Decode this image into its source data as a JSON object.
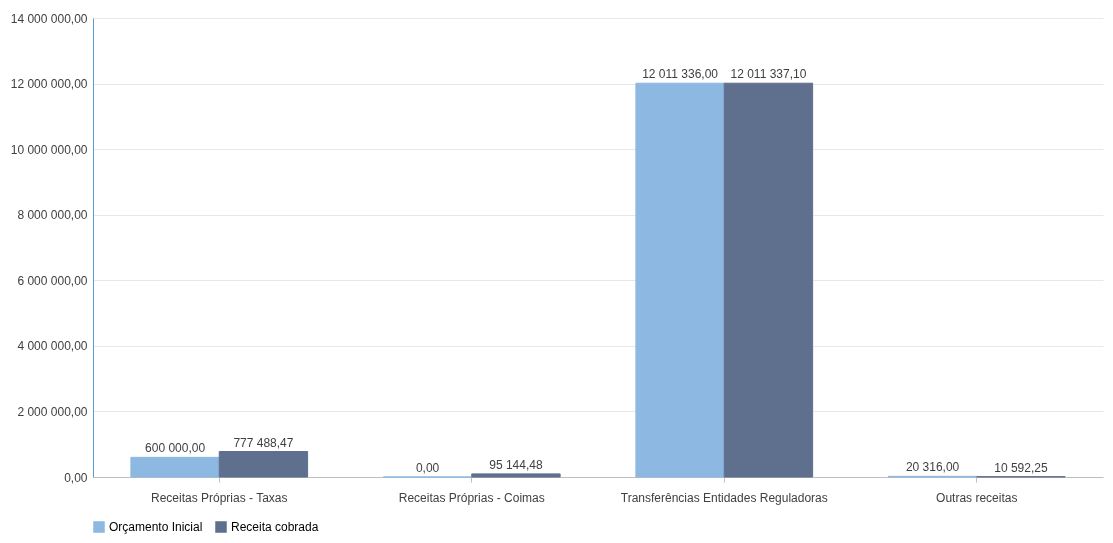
{
  "chart_data": {
    "type": "bar",
    "categories": [
      "Receitas Próprias - Taxas",
      "Receitas Próprias - Coimas",
      "Transferências Entidades Reguladoras",
      "Outras receitas"
    ],
    "series": [
      {
        "name": "Orçamento Inicial",
        "color": "#8db8e2",
        "values": [
          600000,
          0,
          12011336,
          20316
        ],
        "value_labels": [
          "600 000,00",
          "0,00",
          "12 011 336,00",
          "20 316,00"
        ]
      },
      {
        "name": "Receita cobrada",
        "color": "#5f6f8e",
        "values": [
          777488.47,
          95144.48,
          12011337.1,
          10592.25
        ],
        "value_labels": [
          "777 488,47",
          "95 144,48",
          "12 011 337,10",
          "10 592,25"
        ]
      }
    ],
    "ylim": [
      0,
      14000000
    ],
    "yticks": [
      {
        "value": 0,
        "label": "0,00"
      },
      {
        "value": 2000000,
        "label": "2 000 000,00"
      },
      {
        "value": 4000000,
        "label": "4 000 000,00"
      },
      {
        "value": 6000000,
        "label": "6 000 000,00"
      },
      {
        "value": 8000000,
        "label": "8 000 000,00"
      },
      {
        "value": 10000000,
        "label": "10 000 000,00"
      },
      {
        "value": 12000000,
        "label": "12 000 000,00"
      },
      {
        "value": 14000000,
        "label": "14 000 000,00"
      }
    ],
    "grid": "y",
    "legend": "bottom"
  }
}
